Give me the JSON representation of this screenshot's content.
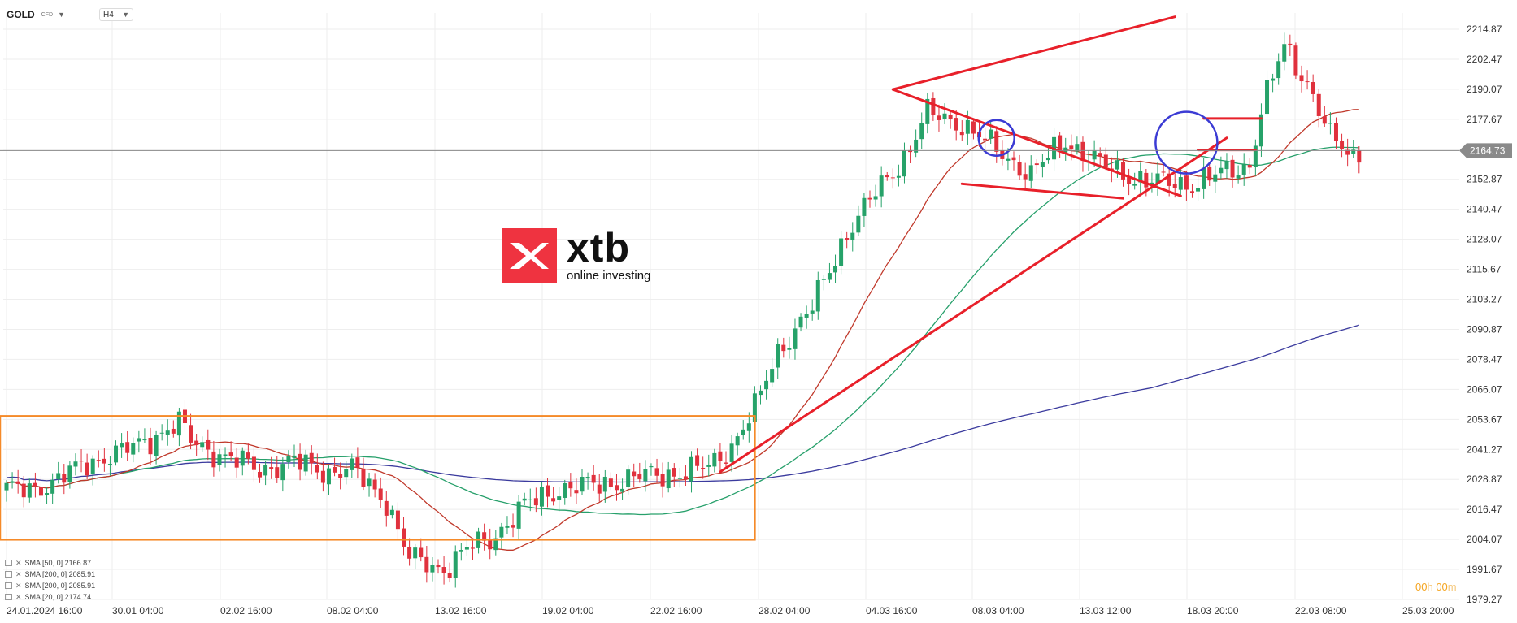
{
  "header": {
    "symbol": "GOLD",
    "instrument_type": "CFD",
    "timeframe": "H4"
  },
  "price_label": "2164.73",
  "countdown": {
    "h_value": "00",
    "h_unit": "h",
    "m_value": "00",
    "m_unit": "m"
  },
  "logo": {
    "word": "xtb",
    "tagline": "online investing"
  },
  "legend": [
    {
      "text": "SMA [50, 0] 2166.87"
    },
    {
      "text": "SMA [200, 0] 2085.91"
    },
    {
      "text": "SMA [200, 0] 2085.91"
    },
    {
      "text": "SMA [20, 0] 2174.74"
    }
  ],
  "colors": {
    "up": "#26a269",
    "down": "#e0313d",
    "sma20": "#c0392b",
    "sma50": "#27a06b",
    "sma200": "#3b3b9e",
    "drawing": "#e8202a",
    "box": "#f58a29",
    "circle": "#3b3bd4",
    "grid": "#eeeeee"
  },
  "chart_data": {
    "type": "candlestick",
    "title": "GOLD",
    "timeframe": "H4",
    "ylim": [
      1979.27,
      2220.0
    ],
    "y_ticks": [
      2214.87,
      2202.47,
      2190.07,
      2177.67,
      2165.27,
      2152.87,
      2140.47,
      2128.07,
      2115.67,
      2103.27,
      2090.87,
      2078.47,
      2066.07,
      2053.67,
      2041.27,
      2028.87,
      2016.47,
      2004.07,
      1991.67,
      1979.27
    ],
    "x_ticks": [
      "24.01.2024 16:00",
      "30.01 04:00",
      "02.02 16:00",
      "08.02 04:00",
      "13.02 16:00",
      "19.02 04:00",
      "22.02 16:00",
      "28.02 04:00",
      "04.03 16:00",
      "08.03 04:00",
      "13.03 12:00",
      "18.03 20:00",
      "22.03 08:00",
      "25.03 20:00"
    ],
    "last_price": 2164.73,
    "n_candles": 236,
    "anchors": [
      [
        0,
        2024
      ],
      [
        8,
        2027
      ],
      [
        14,
        2036
      ],
      [
        20,
        2040
      ],
      [
        26,
        2047
      ],
      [
        30,
        2052
      ],
      [
        32,
        2045
      ],
      [
        38,
        2038
      ],
      [
        44,
        2033
      ],
      [
        50,
        2036
      ],
      [
        56,
        2032
      ],
      [
        60,
        2033
      ],
      [
        66,
        2020
      ],
      [
        70,
        1996
      ],
      [
        76,
        1992
      ],
      [
        80,
        2000
      ],
      [
        84,
        2004
      ],
      [
        90,
        2018
      ],
      [
        96,
        2025
      ],
      [
        104,
        2027
      ],
      [
        110,
        2030
      ],
      [
        118,
        2032
      ],
      [
        122,
        2034
      ],
      [
        126,
        2043
      ],
      [
        130,
        2058
      ],
      [
        134,
        2082
      ],
      [
        140,
        2100
      ],
      [
        146,
        2131
      ],
      [
        150,
        2144
      ],
      [
        156,
        2162
      ],
      [
        160,
        2180
      ],
      [
        166,
        2176
      ],
      [
        172,
        2165
      ],
      [
        178,
        2155
      ],
      [
        184,
        2169
      ],
      [
        190,
        2159
      ],
      [
        198,
        2152
      ],
      [
        206,
        2151
      ],
      [
        212,
        2156
      ],
      [
        216,
        2159
      ],
      [
        218,
        2181
      ],
      [
        222,
        2208
      ],
      [
        226,
        2193
      ],
      [
        230,
        2170
      ],
      [
        234,
        2162
      ],
      [
        235,
        2165
      ]
    ],
    "indicators": [
      {
        "name": "SMA [20, 0]",
        "period": 20,
        "last": 2174.74
      },
      {
        "name": "SMA [50, 0]",
        "period": 50,
        "last": 2166.87
      },
      {
        "name": "SMA [200, 0]",
        "period": 200,
        "last": 2085.91
      }
    ],
    "range_box": {
      "x_start": 0,
      "x_end": 130,
      "y_high": 2055,
      "y_low": 2004
    },
    "trendlines": [
      {
        "from": [
          124,
          2032
        ],
        "to": [
          212,
          2170
        ]
      },
      {
        "from": [
          154,
          2190
        ],
        "to": [
          203,
          2220
        ]
      },
      {
        "from": [
          154,
          2190
        ],
        "to": [
          204,
          2146
        ]
      },
      {
        "from": [
          166,
          2151
        ],
        "to": [
          194,
          2145
        ]
      },
      {
        "from": [
          208,
          2178
        ],
        "to": [
          218,
          2178
        ]
      },
      {
        "from": [
          207,
          2165
        ],
        "to": [
          217,
          2165
        ]
      }
    ],
    "circles": [
      {
        "x": 172,
        "y": 2170
      },
      {
        "x": 205,
        "y": 2168
      }
    ]
  }
}
